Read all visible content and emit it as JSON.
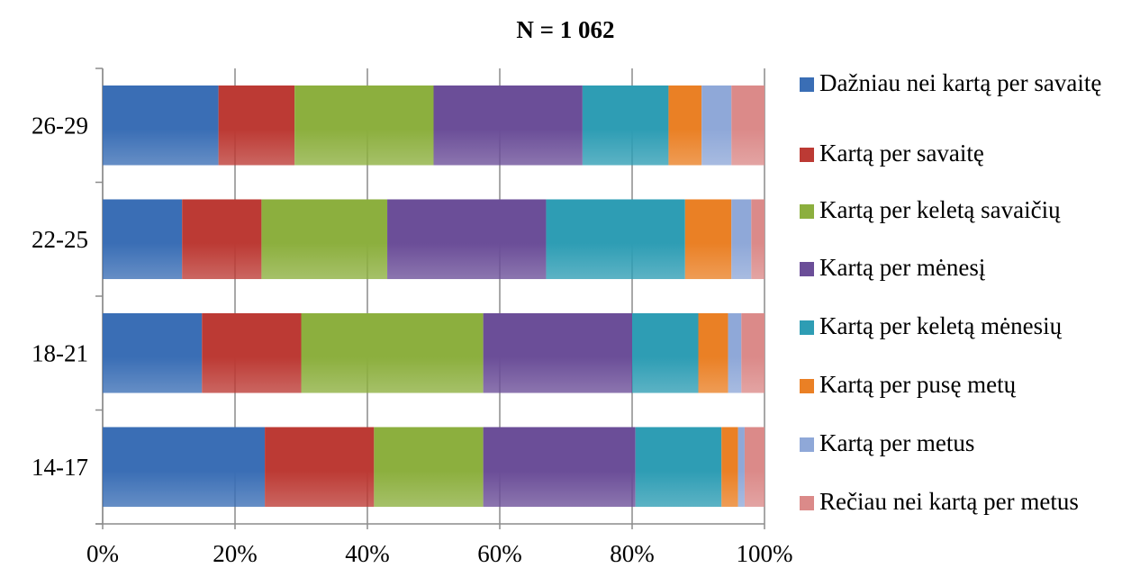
{
  "chart_data": {
    "type": "bar",
    "orientation": "horizontal",
    "stacked": "percent",
    "title": "N = 1 062",
    "categories": [
      "26-29",
      "22-25",
      "18-21",
      "14-17"
    ],
    "x_ticks": [
      "0%",
      "20%",
      "40%",
      "60%",
      "80%",
      "100%"
    ],
    "xlim": [
      0,
      100
    ],
    "grid": "vertical",
    "legend_position": "right",
    "series": [
      {
        "name": "Dažniau nei kartą per savaitę",
        "color": "#3A6EB5",
        "values": [
          17.5,
          12,
          15,
          24.5
        ]
      },
      {
        "name": "Kartą per savaitę",
        "color": "#BC3A34",
        "values": [
          11.5,
          12,
          15,
          16.5
        ]
      },
      {
        "name": "Kartą per keletą savaičių",
        "color": "#8CAF3E",
        "values": [
          21,
          19,
          27.5,
          16.5
        ]
      },
      {
        "name": "Kartą per mėnesį",
        "color": "#6B4E98",
        "values": [
          22.5,
          24,
          22.5,
          23
        ]
      },
      {
        "name": "Kartą per keletą mėnesių",
        "color": "#2E9DB4",
        "values": [
          13,
          21,
          10,
          13
        ]
      },
      {
        "name": "Kartą per pusę metų",
        "color": "#EA8025",
        "values": [
          5,
          7,
          4.5,
          2.5
        ]
      },
      {
        "name": "Kartą per metus",
        "color": "#8FA8D8",
        "values": [
          4.5,
          3,
          2,
          1
        ]
      },
      {
        "name": "Rečiau nei kartą per metus",
        "color": "#DB8A89",
        "values": [
          5,
          2,
          3.5,
          3
        ]
      }
    ]
  }
}
